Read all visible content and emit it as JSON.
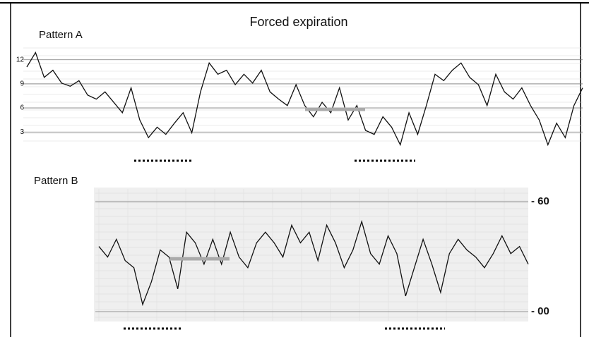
{
  "chart_data": [
    {
      "type": "line",
      "title": "Forced expiration",
      "subtitle": "Pattern A",
      "ylim": [
        1,
        14
      ],
      "yticks": [
        3,
        6,
        9,
        12
      ],
      "grid": true,
      "series": [
        {
          "color": "#111111",
          "values": [
            11.1,
            12.9,
            9.8,
            10.7,
            9.1,
            8.7,
            9.4,
            7.6,
            7.1,
            8.0,
            6.7,
            5.4,
            8.5,
            4.5,
            2.3,
            3.6,
            2.7,
            4.1,
            5.4,
            2.9,
            8.0,
            11.6,
            10.2,
            10.7,
            8.9,
            10.2,
            9.1,
            10.7,
            8.0,
            7.1,
            6.3,
            8.9,
            6.3,
            4.9,
            6.7,
            5.4,
            8.5,
            4.5,
            6.3,
            3.2,
            2.7,
            4.9,
            3.6,
            1.4,
            5.4,
            2.7,
            6.3,
            10.2,
            9.4,
            10.7,
            11.6,
            9.8,
            8.9,
            6.3,
            10.2,
            8.0,
            7.1,
            8.5,
            6.3,
            4.5,
            1.4,
            4.1,
            2.3,
            6.3,
            8.5
          ]
        }
      ]
    },
    {
      "type": "line",
      "subtitle": "Pattern B",
      "ylim": [
        -5,
        67
      ],
      "yticks": [
        {
          "value": 60,
          "label": "- 60"
        },
        {
          "value": 0,
          "label": "- 00"
        }
      ],
      "grid": true,
      "series": [
        {
          "color": "#111111",
          "values": [
            35.6,
            29.8,
            39.5,
            27.9,
            24.0,
            3.9,
            16.3,
            33.7,
            29.8,
            12.4,
            43.4,
            37.6,
            25.9,
            39.5,
            25.9,
            43.4,
            29.8,
            24.0,
            37.6,
            43.4,
            37.6,
            29.8,
            47.2,
            37.6,
            43.4,
            27.9,
            47.2,
            37.6,
            24.0,
            33.7,
            49.2,
            31.7,
            25.9,
            41.4,
            31.7,
            8.5,
            24.0,
            39.5,
            25.9,
            10.5,
            31.7,
            39.5,
            33.7,
            29.8,
            24.0,
            31.7,
            41.4,
            31.7,
            35.6,
            25.9
          ]
        }
      ]
    }
  ]
}
